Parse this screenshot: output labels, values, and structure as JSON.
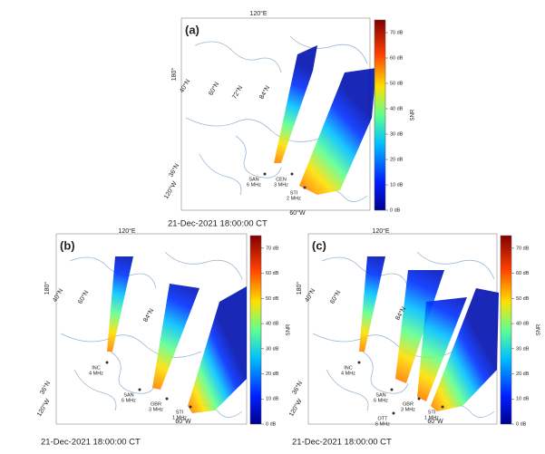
{
  "panels": [
    {
      "label": "(a)",
      "timestamp": "21-Dec-2021  18:00:00 CT",
      "map_labels": [
        "120°E",
        "180°",
        "40°N",
        "60°N",
        "72°N",
        "84°N",
        "36°N",
        "120°W",
        "60°W"
      ],
      "radars": [
        {
          "name": "SAN",
          "freq": "6 MHz"
        },
        {
          "name": "CEN",
          "freq": "3 MHz"
        },
        {
          "name": "STI",
          "freq": "2 MHz"
        }
      ]
    },
    {
      "label": "(b)",
      "timestamp": "21-Dec-2021  18:00:00 CT",
      "map_labels": [
        "120°E",
        "180°",
        "40°N",
        "60°N",
        "84°N",
        "36°N",
        "120°W",
        "60°W"
      ],
      "radars": [
        {
          "name": "INC",
          "freq": "4 MHz"
        },
        {
          "name": "SAN",
          "freq": "6 MHz"
        },
        {
          "name": "GBR",
          "freq": "3 MHz"
        },
        {
          "name": "STI",
          "freq": "1 MHz"
        }
      ]
    },
    {
      "label": "(c)",
      "timestamp": "21-Dec-2021  18:00:00 CT",
      "map_labels": [
        "120°E",
        "180°",
        "40°N",
        "60°N",
        "84°N",
        "36°N",
        "120°W",
        "60°W"
      ],
      "radars": [
        {
          "name": "INC",
          "freq": "4 MHz"
        },
        {
          "name": "SAN",
          "freq": "6 MHz"
        },
        {
          "name": "GBR",
          "freq": "3 MHz"
        },
        {
          "name": "STI",
          "freq": "1 MHz"
        },
        {
          "name": "OTT",
          "freq": "6 MHz"
        }
      ]
    }
  ],
  "colorbar": {
    "title": "SNR",
    "lim": [
      0,
      75
    ],
    "ticks": [
      {
        "value": 0,
        "label": "0 dB"
      },
      {
        "value": 10,
        "label": "10 dB"
      },
      {
        "value": 20,
        "label": "20 dB"
      },
      {
        "value": 30,
        "label": "30 dB"
      },
      {
        "value": 40,
        "label": "40 dB"
      },
      {
        "value": 50,
        "label": "50 dB"
      },
      {
        "value": 60,
        "label": "60 dB"
      },
      {
        "value": 70,
        "label": "70 dB"
      }
    ]
  }
}
